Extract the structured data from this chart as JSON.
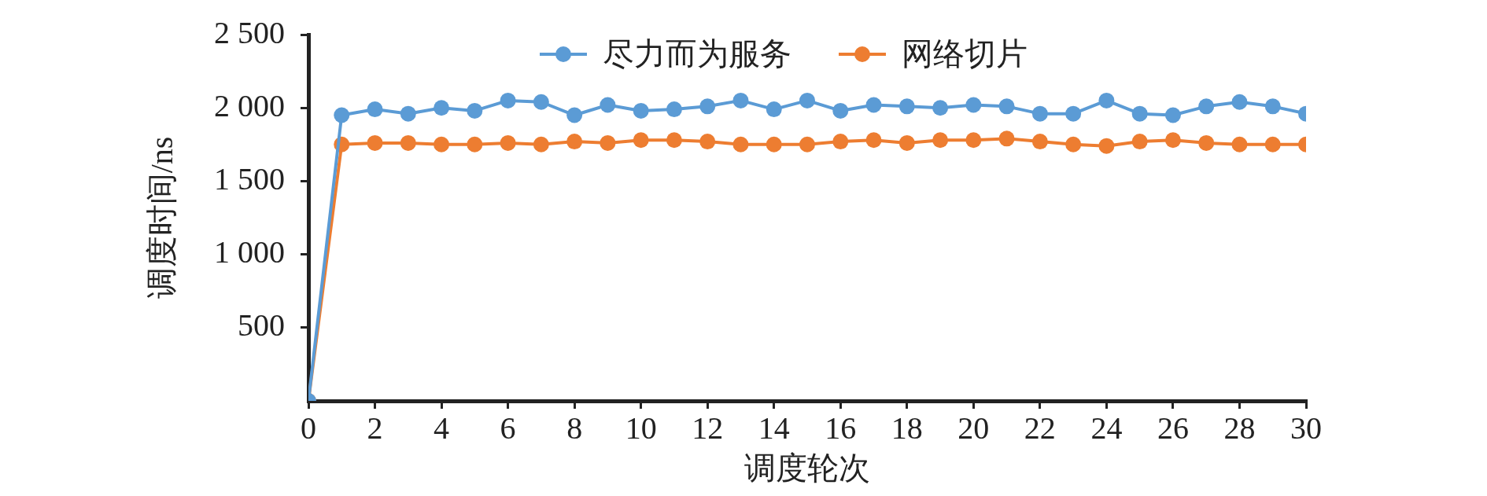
{
  "chart_data": {
    "type": "line",
    "xlabel": "调度轮次",
    "ylabel": "调度时间/ns",
    "x": [
      0,
      1,
      2,
      3,
      4,
      5,
      6,
      7,
      8,
      9,
      10,
      11,
      12,
      13,
      14,
      15,
      16,
      17,
      18,
      19,
      20,
      21,
      22,
      23,
      24,
      25,
      26,
      27,
      28,
      29,
      30
    ],
    "series": [
      {
        "name": "尽力而为服务",
        "color": "#5b9bd5",
        "values": [
          0,
          1950,
          1990,
          1960,
          2000,
          1980,
          2050,
          2040,
          1950,
          2020,
          1980,
          1990,
          2010,
          2050,
          1990,
          2050,
          1980,
          2020,
          2010,
          2000,
          2020,
          2010,
          1960,
          1960,
          2050,
          1960,
          1950,
          2010,
          2040,
          2010,
          1960
        ]
      },
      {
        "name": "网络切片",
        "color": "#ed7d31",
        "values": [
          0,
          1750,
          1760,
          1760,
          1750,
          1750,
          1760,
          1750,
          1770,
          1760,
          1780,
          1780,
          1770,
          1750,
          1750,
          1750,
          1770,
          1780,
          1760,
          1780,
          1780,
          1790,
          1770,
          1750,
          1740,
          1770,
          1780,
          1760,
          1750,
          1750,
          1750
        ]
      }
    ],
    "xlim": [
      0,
      30
    ],
    "xticks": [
      0,
      2,
      4,
      6,
      8,
      10,
      12,
      14,
      16,
      18,
      20,
      22,
      24,
      26,
      28,
      30
    ],
    "ylim": [
      0,
      2500
    ],
    "yticks": [
      {
        "value": 500,
        "label": "500"
      },
      {
        "value": 1000,
        "label": "1 000"
      },
      {
        "value": 1500,
        "label": "1 500"
      },
      {
        "value": 2000,
        "label": "2 000"
      },
      {
        "value": 2500,
        "label": "2 500"
      }
    ],
    "grid": false,
    "legend": "top",
    "marker": "circle",
    "line_style": "solid"
  }
}
